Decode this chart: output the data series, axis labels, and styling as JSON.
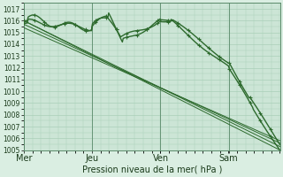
{
  "xlabel": "Pression niveau de la mer( hPa )",
  "ylim": [
    1005,
    1017.5
  ],
  "yticks": [
    1005,
    1006,
    1007,
    1008,
    1009,
    1010,
    1011,
    1012,
    1013,
    1014,
    1015,
    1016,
    1017
  ],
  "xtick_labels": [
    "Mer",
    "Jeu",
    "Ven",
    "Sam"
  ],
  "xtick_positions": [
    0,
    0.333,
    0.667,
    1.0
  ],
  "xlim": [
    0,
    1.25
  ],
  "line_color": "#2d6a2d",
  "bg_color": "#daeee2",
  "plot_bg": "#cce5d6",
  "grid_color": "#aacfb8",
  "n_points": 300
}
